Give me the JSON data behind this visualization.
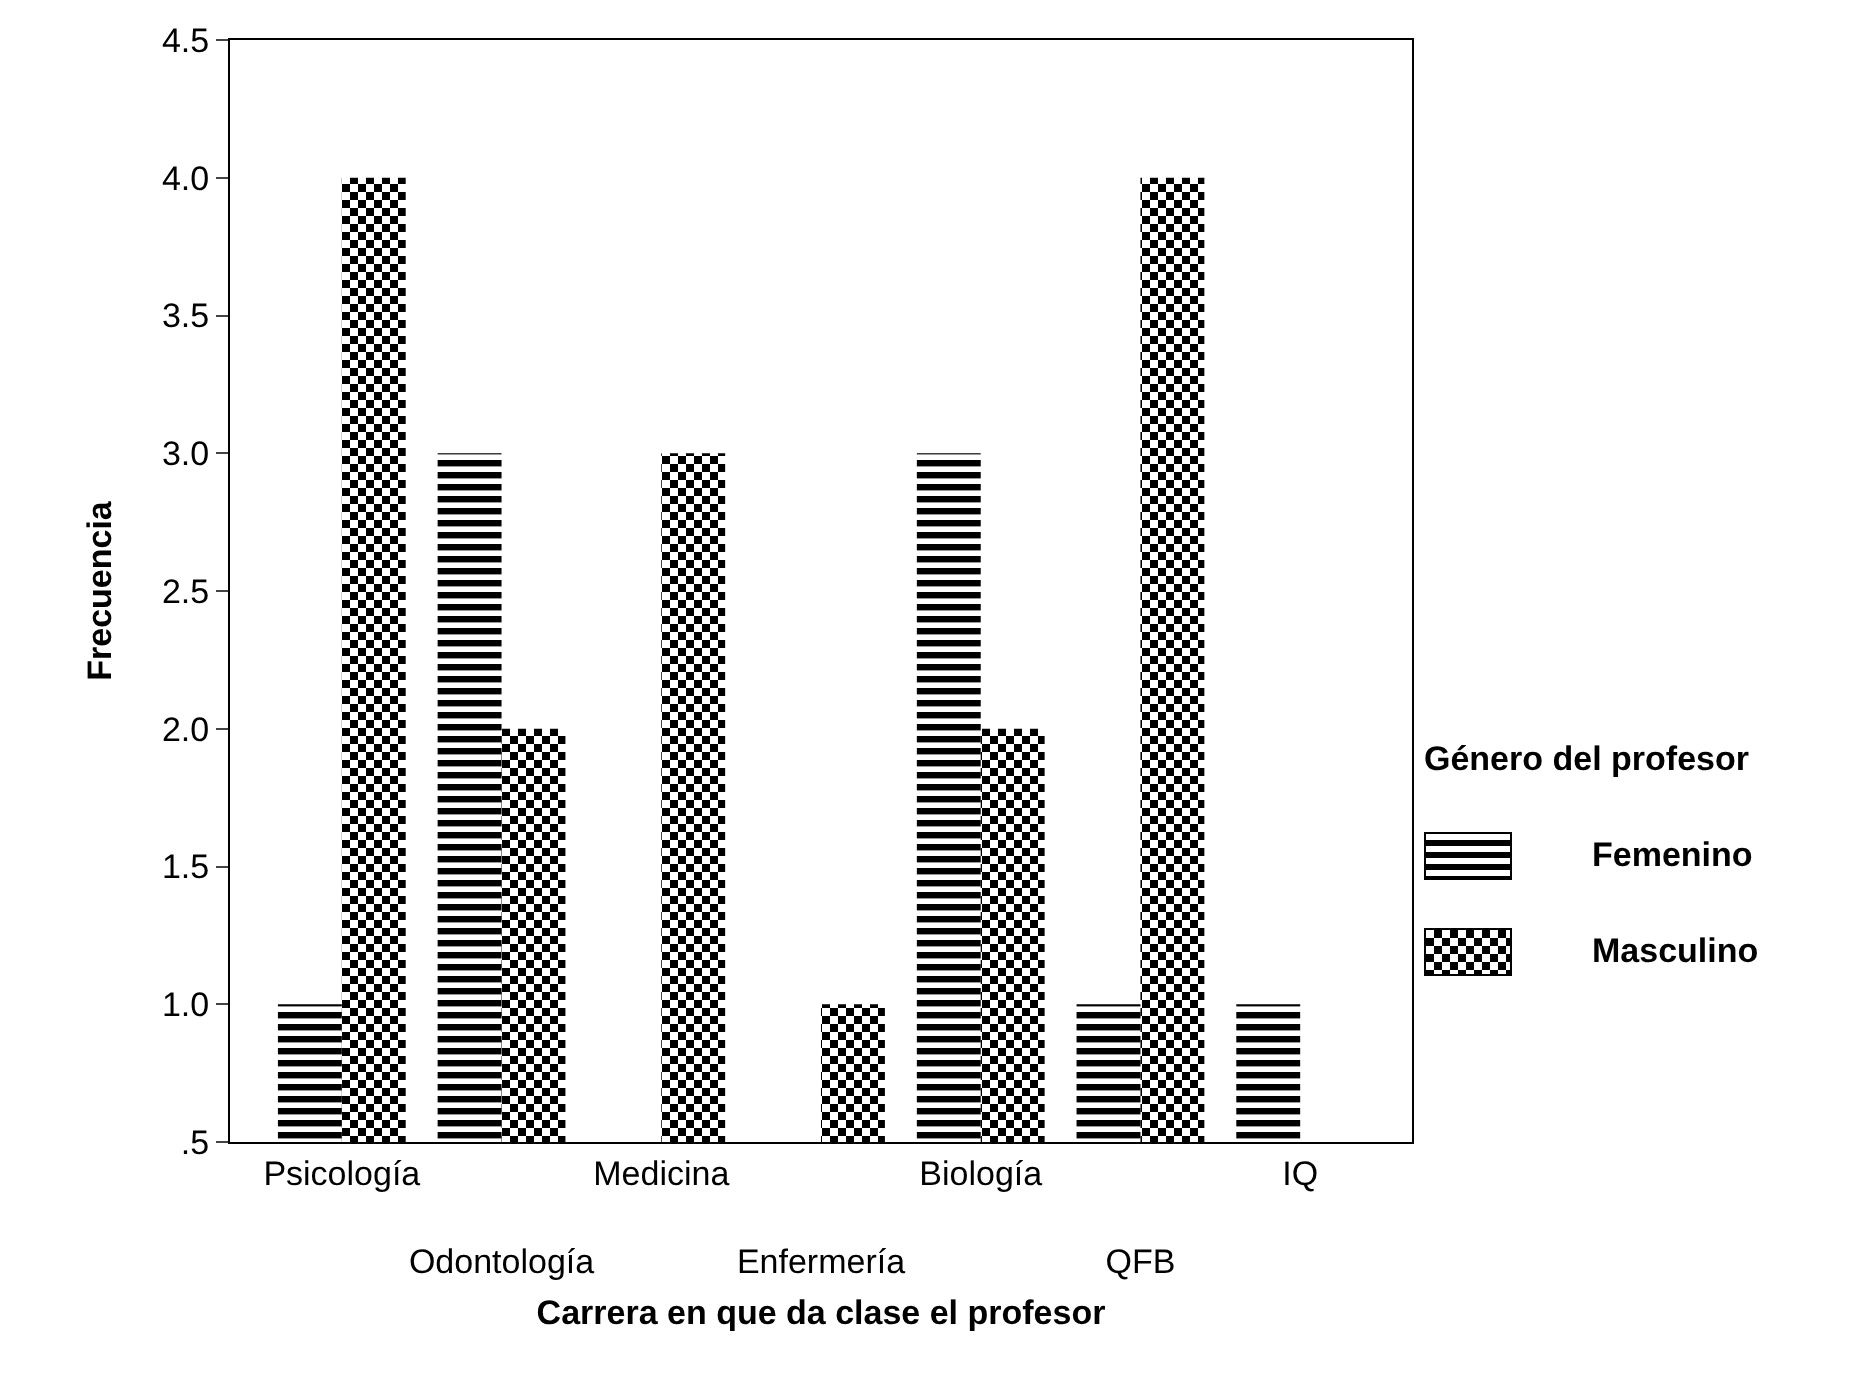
{
  "chart_data": {
    "type": "bar",
    "xlabel": "Carrera en que da clase el profesor",
    "ylabel": "Frecuencia",
    "legend_title": "Género del profesor",
    "categories": [
      "Psicología",
      "Odontología",
      "Medicina",
      "Enfermería",
      "Biología",
      "QFB",
      "IQ"
    ],
    "series": [
      {
        "name": "Femenino",
        "color": "#000000",
        "values": [
          1,
          3,
          null,
          null,
          3,
          1,
          1
        ]
      },
      {
        "name": "Masculino",
        "color": "#000000",
        "values": [
          4,
          2,
          3,
          1,
          2,
          4,
          null
        ]
      }
    ],
    "ylim": [
      0.5,
      4.5
    ],
    "yticks": [
      {
        "value": 0.5,
        "label": ".5"
      },
      {
        "value": 1,
        "label": "1.0"
      },
      {
        "value": 1.5,
        "label": "1.5"
      },
      {
        "value": 2,
        "label": "2.0"
      },
      {
        "value": 2.5,
        "label": "2.5"
      },
      {
        "value": 3,
        "label": "3.0"
      },
      {
        "value": 3.5,
        "label": "3.5"
      },
      {
        "value": 4,
        "label": "4.0"
      },
      {
        "value": 4.5,
        "label": "4.5"
      }
    ],
    "grid": false,
    "legend": "right"
  }
}
